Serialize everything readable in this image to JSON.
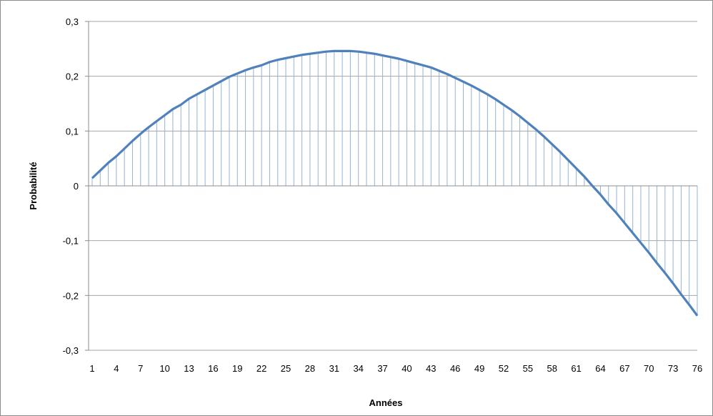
{
  "chart_data": {
    "type": "line",
    "title": "",
    "xlabel": "Années",
    "ylabel": "Probabilité",
    "ylim": [
      -0.3,
      0.3
    ],
    "y_ticks": [
      "0,3",
      "0,2",
      "0,1",
      "0",
      "-0,1",
      "-0,2",
      "-0,3"
    ],
    "y_tick_values": [
      0.3,
      0.2,
      0.1,
      0,
      -0.1,
      -0.2,
      -0.3
    ],
    "x_ticks": [
      "1",
      "4",
      "7",
      "10",
      "13",
      "16",
      "19",
      "22",
      "25",
      "28",
      "31",
      "34",
      "37",
      "40",
      "43",
      "46",
      "49",
      "52",
      "55",
      "58",
      "61",
      "64",
      "67",
      "70",
      "73",
      "76"
    ],
    "x_tick_values": [
      1,
      4,
      7,
      10,
      13,
      16,
      19,
      22,
      25,
      28,
      31,
      34,
      37,
      40,
      43,
      46,
      49,
      52,
      55,
      58,
      61,
      64,
      67,
      70,
      73,
      76
    ],
    "grid": "horizontal",
    "legend": "none",
    "drop_lines": true,
    "colors": {
      "line": "#4f81bd",
      "drop": "#95b3d7",
      "grid": "#a6a6a6",
      "axis": "#8c8c8c"
    },
    "x": [
      1,
      2,
      3,
      4,
      5,
      6,
      7,
      8,
      9,
      10,
      11,
      12,
      13,
      14,
      15,
      16,
      17,
      18,
      19,
      20,
      21,
      22,
      23,
      24,
      25,
      26,
      27,
      28,
      29,
      30,
      31,
      32,
      33,
      34,
      35,
      36,
      37,
      38,
      39,
      40,
      41,
      42,
      43,
      44,
      45,
      46,
      47,
      48,
      49,
      50,
      51,
      52,
      53,
      54,
      55,
      56,
      57,
      58,
      59,
      60,
      61,
      62,
      63,
      64,
      65,
      66,
      67,
      68,
      69,
      70,
      71,
      72,
      73,
      74,
      75,
      76
    ],
    "series": [
      {
        "values": [
          0.014,
          0.028,
          0.042,
          0.054,
          0.068,
          0.082,
          0.095,
          0.107,
          0.118,
          0.129,
          0.14,
          0.148,
          0.159,
          0.167,
          0.175,
          0.183,
          0.191,
          0.199,
          0.205,
          0.211,
          0.216,
          0.22,
          0.226,
          0.23,
          0.233,
          0.236,
          0.239,
          0.241,
          0.243,
          0.245,
          0.246,
          0.246,
          0.246,
          0.245,
          0.243,
          0.241,
          0.238,
          0.235,
          0.232,
          0.228,
          0.224,
          0.22,
          0.216,
          0.21,
          0.204,
          0.197,
          0.19,
          0.183,
          0.175,
          0.167,
          0.158,
          0.148,
          0.138,
          0.127,
          0.115,
          0.103,
          0.09,
          0.076,
          0.062,
          0.047,
          0.032,
          0.017,
          0.0,
          -0.016,
          -0.034,
          -0.05,
          -0.068,
          -0.086,
          -0.104,
          -0.122,
          -0.141,
          -0.159,
          -0.178,
          -0.198,
          -0.217,
          -0.237
        ]
      }
    ]
  }
}
